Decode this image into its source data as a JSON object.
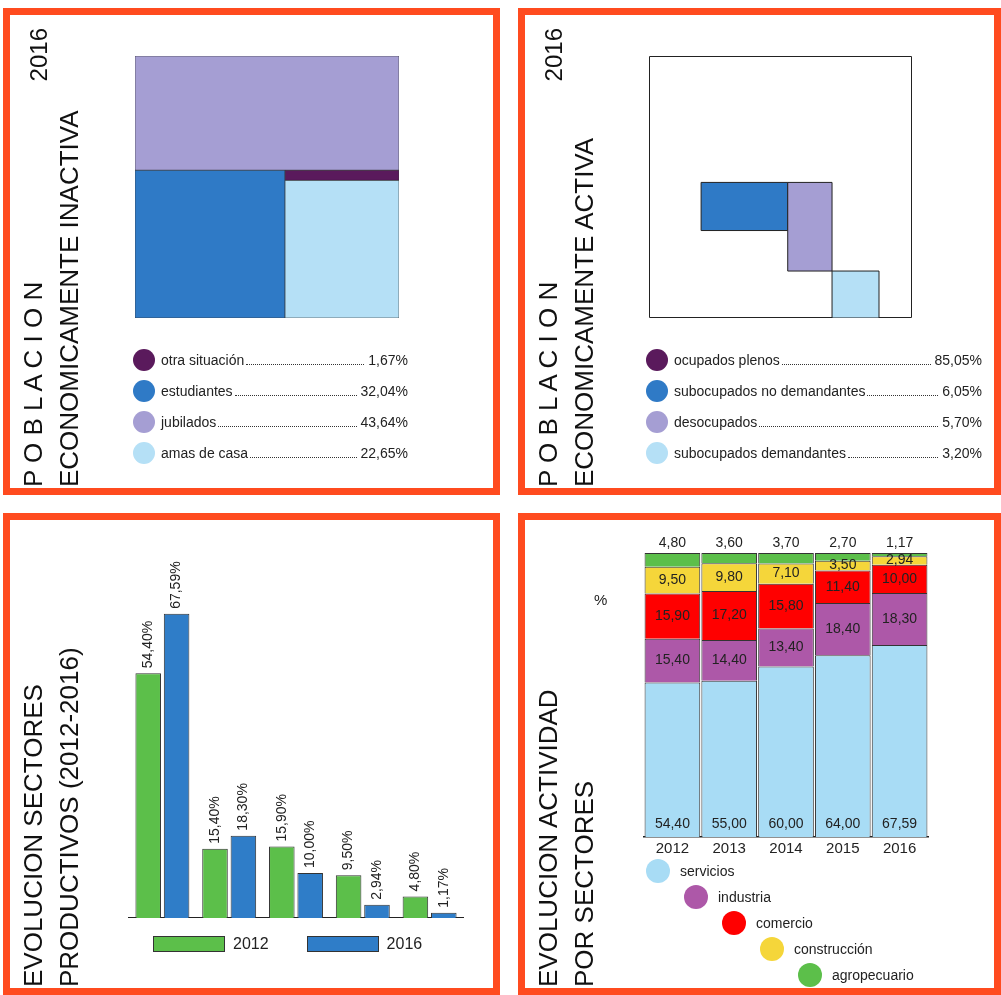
{
  "chart_data": [
    {
      "type": "other",
      "title": "P O B L A C I O N\nECONOMICAMENTE INACTIVA",
      "subtitle": "2016",
      "categories": [
        "otra situación",
        "estudiantes",
        "jubilados",
        "amas de casa"
      ],
      "values": [
        1.67,
        32.04,
        43.64,
        22.65
      ],
      "value_labels": [
        "1,67%",
        "32,04%",
        "43,64%",
        "22,65%"
      ],
      "colors": [
        "#5a1a5c",
        "#2f7ac6",
        "#a59ed3",
        "#b5e0f6"
      ]
    },
    {
      "type": "other",
      "title": "P O B L A C I O N\nECONOMICAMENTE ACTIVA",
      "subtitle": "2016",
      "categories": [
        "ocupados plenos",
        "subocupados no demandantes",
        "desocupados",
        "subocupados demandantes"
      ],
      "values": [
        85.05,
        6.05,
        5.7,
        3.2
      ],
      "value_labels": [
        "85,05%",
        "6,05%",
        "5,70%",
        "3,20%"
      ],
      "colors": [
        "#5a1a5c",
        "#2f7ac6",
        "#a59ed3",
        "#b5e0f6"
      ]
    },
    {
      "type": "bar",
      "title": "EVOLUCION  SECTORES\nPRODUCTIVOS (2012-2016)",
      "categories": [
        null,
        null,
        null,
        null,
        null
      ],
      "tick_labels": false,
      "grid": false,
      "legend": "bottom",
      "series": [
        {
          "name": "2012",
          "color": "#5cbf4a",
          "values": [
            54.4,
            15.4,
            15.9,
            9.5,
            4.8
          ],
          "value_labels": [
            "54,40%",
            "15,40%",
            "15,90%",
            "9,50%",
            "4,80%"
          ]
        },
        {
          "name": "2016",
          "color": "#2f7dc8",
          "values": [
            67.59,
            18.3,
            10.0,
            2.94,
            1.17
          ],
          "value_labels": [
            "67,59%",
            "18,30%",
            "10,00%",
            "2,94%",
            "1,17%"
          ]
        }
      ]
    },
    {
      "type": "bar",
      "title": "EVOLUCION ACTIVIDAD\nPOR SECTORES",
      "stacked": true,
      "categories": [
        "2012",
        "2013",
        "2014",
        "2015",
        "2016"
      ],
      "tick_labels": "x",
      "grid": false,
      "legend": "bottom",
      "annotations": [
        "%"
      ],
      "series": [
        {
          "name": "servicios",
          "color": "#a8dcf5",
          "values": [
            54.4,
            55.0,
            60.0,
            64.0,
            67.59
          ],
          "value_labels": [
            "54,40",
            "55,00",
            "60,00",
            "64,00",
            "67,59"
          ]
        },
        {
          "name": "industria",
          "color": "#ad58a8",
          "values": [
            15.4,
            14.4,
            13.4,
            18.4,
            18.3
          ],
          "value_labels": [
            "15,40",
            "14,40",
            "13,40",
            "18,40",
            "18,30"
          ]
        },
        {
          "name": "comercio",
          "color": "#ff0000",
          "values": [
            15.9,
            17.2,
            15.8,
            11.4,
            10.0
          ],
          "value_labels": [
            "15,90",
            "17,20",
            "15,80",
            "11,40",
            "10,00"
          ]
        },
        {
          "name": "construcción",
          "color": "#f5d63a",
          "values": [
            9.5,
            9.8,
            7.1,
            3.5,
            2.94
          ],
          "value_labels": [
            "9,50",
            "9,80",
            "7,10",
            "3,50",
            "2,94"
          ]
        },
        {
          "name": "agropecuario",
          "color": "#5cbf4a",
          "values": [
            4.8,
            3.6,
            3.7,
            2.7,
            1.17
          ],
          "value_labels": [
            "4,80",
            "3,60",
            "3,70",
            "2,70",
            "1,17"
          ]
        }
      ]
    }
  ]
}
